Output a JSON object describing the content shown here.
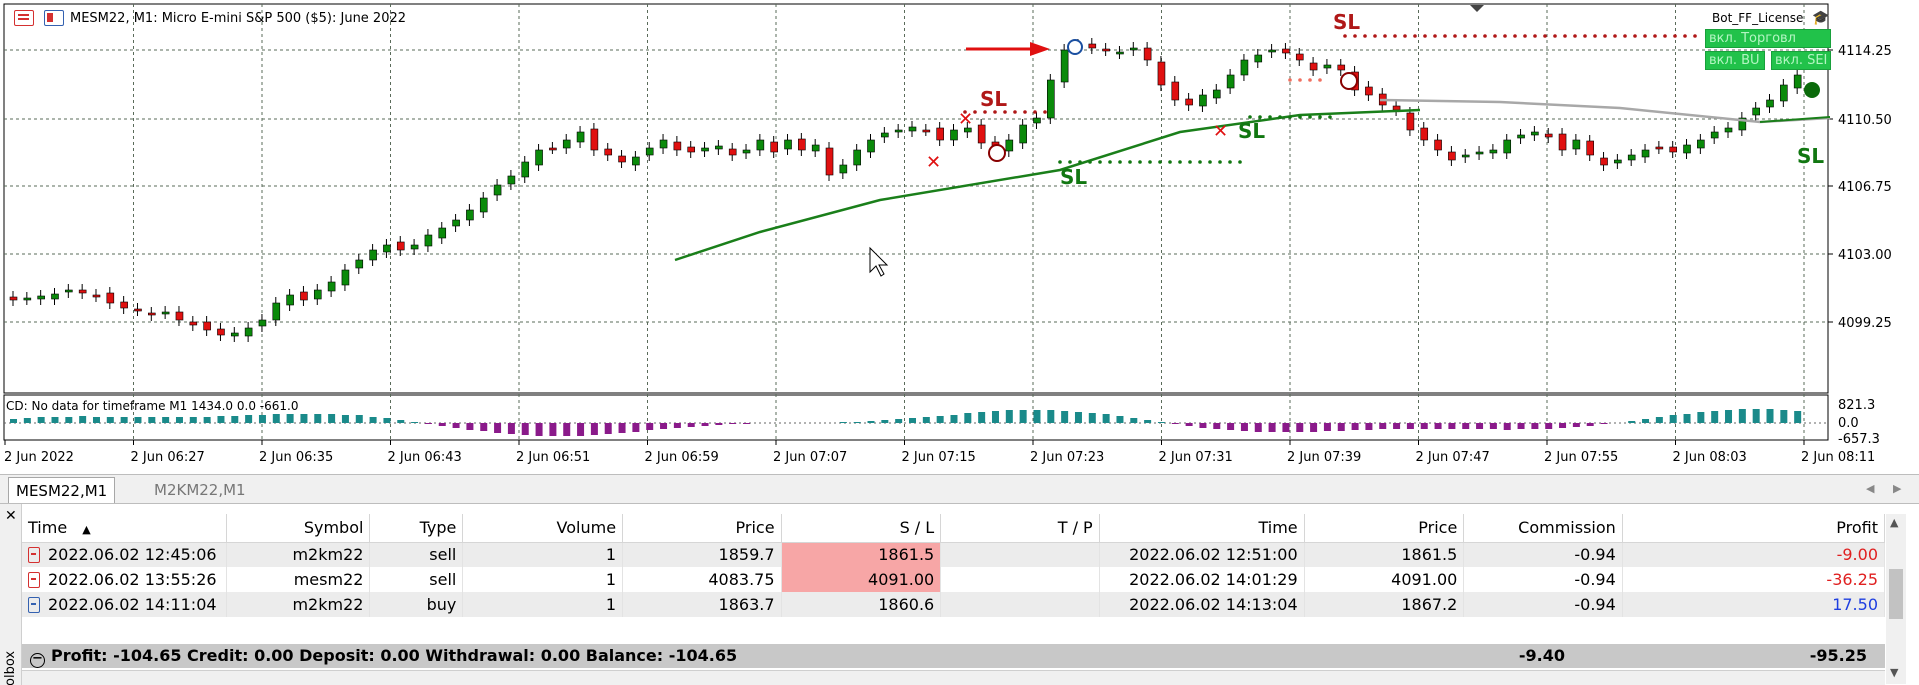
{
  "chart": {
    "title": "MESM22, M1:  Micro E-mini S&P 500 ($5): June 2022",
    "license": "Bot_FF_License",
    "buttons": [
      "вкл. Торговл",
      "вкл. BU",
      "вкл. SEI"
    ],
    "price_levels": [
      "4114.25",
      "4110.50",
      "4106.75",
      "4103.00",
      "4099.25"
    ],
    "indicator_label": "CD: No data for timeframe M1 1434.0 0.0 -661.0",
    "indicator_levels": [
      "821.3",
      "0.0",
      "-657.3"
    ],
    "time_labels": [
      "2 Jun 2022",
      "2 Jun 06:27",
      "2 Jun 06:35",
      "2 Jun 06:43",
      "2 Jun 06:51",
      "2 Jun 06:59",
      "2 Jun 07:07",
      "2 Jun 07:15",
      "2 Jun 07:23",
      "2 Jun 07:31",
      "2 Jun 07:39",
      "2 Jun 07:47",
      "2 Jun 07:55",
      "2 Jun 08:03",
      "2 Jun 08:11"
    ],
    "sl_markers": [
      "SL",
      "SL",
      "SL",
      "SL",
      "SL"
    ],
    "colors": {
      "bull": "#0a8a0a",
      "bear": "#e01010",
      "ma": "#1a7f1a",
      "grid": "#5a6b5a",
      "histo_pos": "#1a8a8a",
      "histo_neg": "#8a1a8a",
      "sl_red": "#b01818",
      "sl_green": "#117711"
    }
  },
  "tabs": [
    {
      "label": "MESM22,M1",
      "active": true
    },
    {
      "label": "M2KM22,M1",
      "active": false
    }
  ],
  "table": {
    "headers": [
      "Time",
      "Symbol",
      "Type",
      "Volume",
      "Price",
      "S / L",
      "T / P",
      "Time",
      "Price",
      "Commission",
      "Profit"
    ],
    "sort_indicator": "▲",
    "rows": [
      {
        "time": "2022.06.02 12:45:06",
        "symbol": "m2km22",
        "type": "sell",
        "volume": "1",
        "price": "1859.7",
        "sl": "1861.5",
        "tp": "",
        "close_time": "2022.06.02 12:51:00",
        "close_price": "1861.5",
        "commission": "-0.94",
        "profit": "-9.00"
      },
      {
        "time": "2022.06.02 13:55:26",
        "symbol": "mesm22",
        "type": "sell",
        "volume": "1",
        "price": "4083.75",
        "sl": "4091.00",
        "tp": "",
        "close_time": "2022.06.02 14:01:29",
        "close_price": "4091.00",
        "commission": "-0.94",
        "profit": "-36.25"
      },
      {
        "time": "2022.06.02 14:11:04",
        "symbol": "m2km22",
        "type": "buy",
        "volume": "1",
        "price": "1863.7",
        "sl": "1860.6",
        "tp": "",
        "close_time": "2022.06.02 14:13:04",
        "close_price": "1867.2",
        "commission": "-0.94",
        "profit": "17.50"
      }
    ],
    "summary": {
      "text": "Profit: -104.65  Credit: 0.00  Deposit: 0.00  Withdrawal: 0.00  Balance: -104.65",
      "commission": "-9.40",
      "profit": "-95.25"
    }
  },
  "side": {
    "toolbox_label": "olbox"
  }
}
